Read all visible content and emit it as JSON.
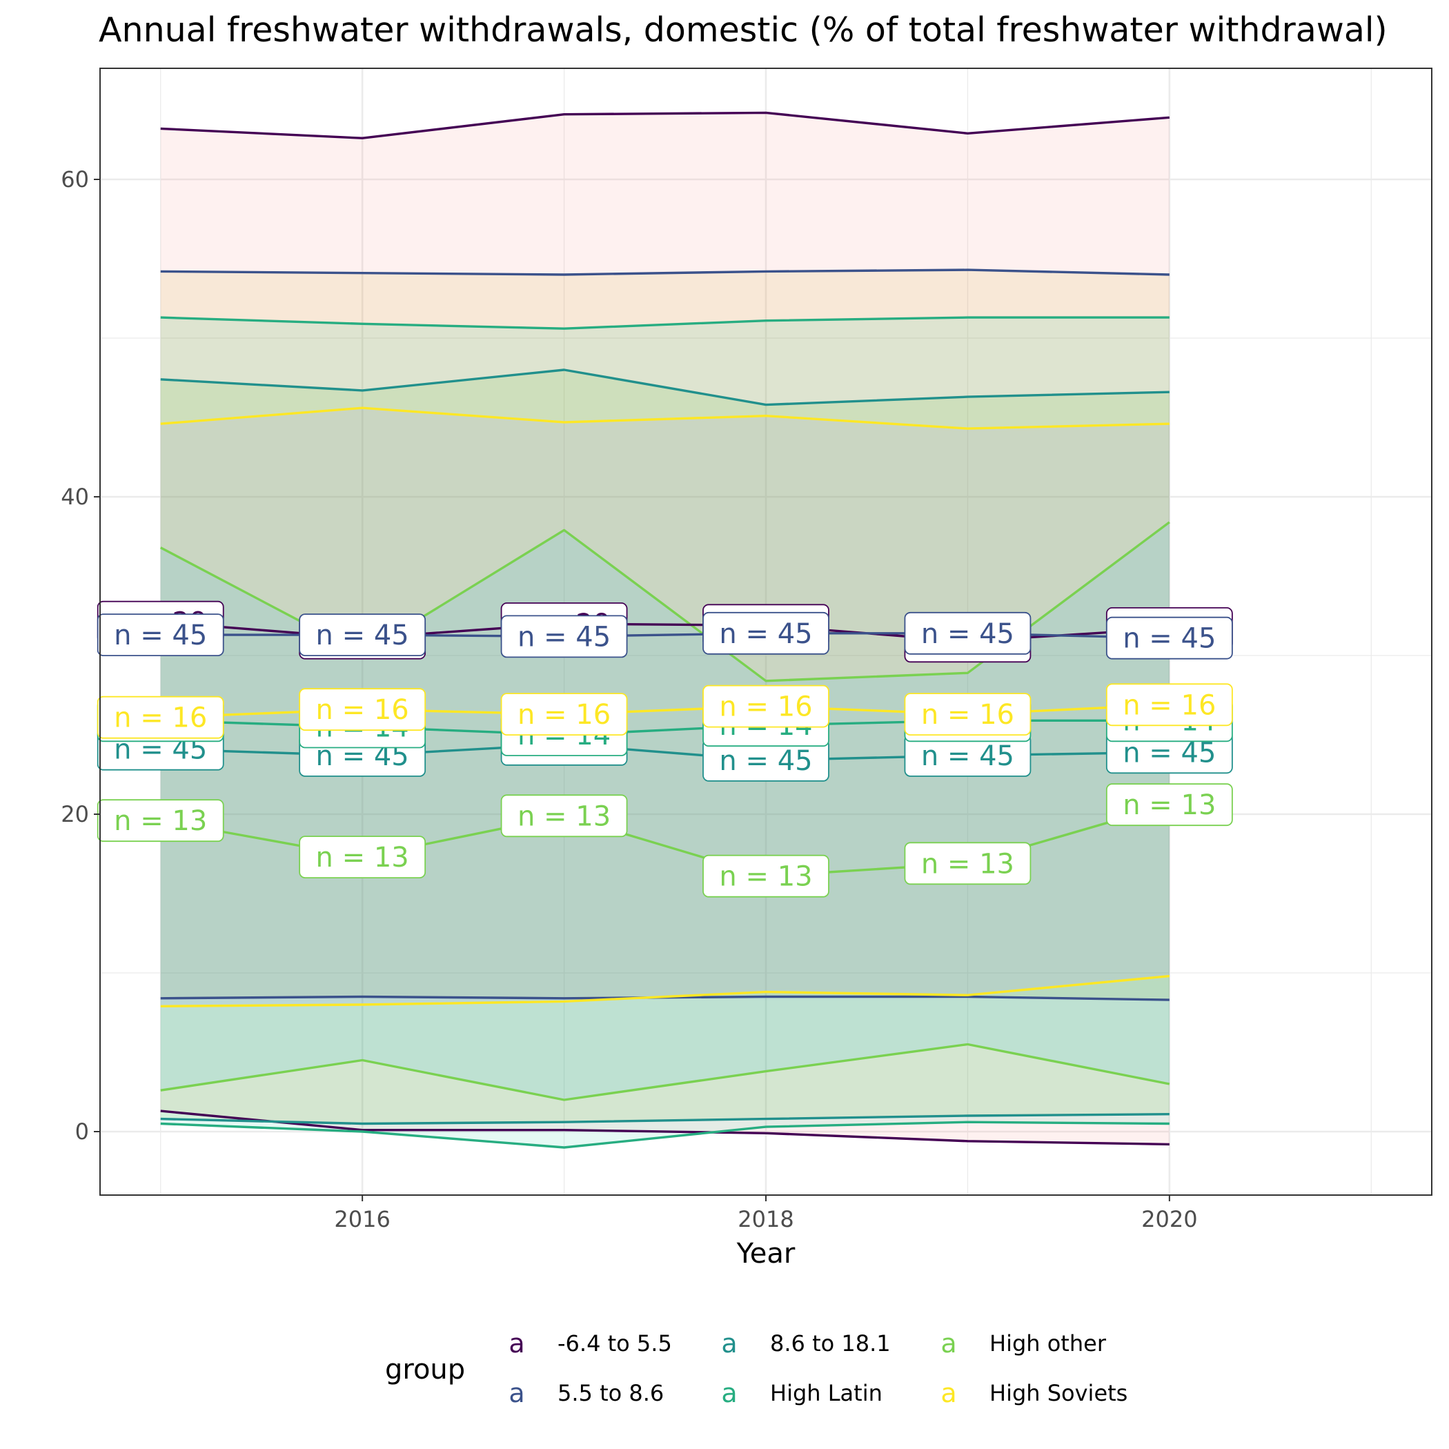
{
  "chart_data": {
    "type": "line",
    "title": "Annual freshwater withdrawals, domestic (% of total freshwater withdrawal)",
    "xlabel": "Year",
    "ylabel": "",
    "xlim": [
      2014.7,
      2021.3
    ],
    "ylim": [
      -4,
      67
    ],
    "x_ticks": [
      2016,
      2018,
      2020
    ],
    "y_ticks": [
      0,
      20,
      40,
      60
    ],
    "grid": true,
    "legend": {
      "title": "group",
      "position": "bottom",
      "key_glyph": "a"
    },
    "x": [
      2015,
      2016,
      2017,
      2018,
      2019,
      2020
    ],
    "series": [
      {
        "name": "-6.4 to 5.5",
        "color": "#440154",
        "fill": "#F8766D",
        "mean": [
          32.1,
          31.1,
          32.0,
          31.9,
          30.9,
          31.7
        ],
        "upper": [
          63.2,
          62.6,
          64.1,
          64.2,
          62.9,
          63.9
        ],
        "lower": [
          1.3,
          0.1,
          0.1,
          -0.1,
          -0.6,
          -0.8
        ],
        "n_labels": [
          "n = 29",
          "n = 29",
          "n = 29",
          "n = 29",
          "n = 29",
          "n = 29"
        ]
      },
      {
        "name": "5.5 to 8.6",
        "color": "#3B528B",
        "fill": "#C49A00",
        "mean": [
          31.3,
          31.3,
          31.2,
          31.4,
          31.4,
          31.1
        ],
        "upper": [
          54.2,
          54.1,
          54.0,
          54.2,
          54.3,
          54.0
        ],
        "lower": [
          8.4,
          8.5,
          8.4,
          8.5,
          8.5,
          8.3
        ],
        "n_labels": [
          "n = 45",
          "n = 45",
          "n = 45",
          "n = 45",
          "n = 45",
          "n = 45"
        ]
      },
      {
        "name": "8.6 to 18.1",
        "color": "#21908C",
        "fill": "#53B400",
        "mean": [
          24.1,
          23.7,
          24.4,
          23.4,
          23.7,
          23.9
        ],
        "upper": [
          47.4,
          46.7,
          48.0,
          45.8,
          46.3,
          46.6
        ],
        "lower": [
          0.8,
          0.5,
          0.6,
          0.8,
          1.0,
          1.1
        ],
        "n_labels": [
          "n = 45",
          "n = 45",
          "n = 45",
          "n = 45",
          "n = 45",
          "n = 45"
        ]
      },
      {
        "name": "High Latin",
        "color": "#27AD81",
        "fill": "#00C094",
        "mean": [
          25.9,
          25.5,
          25.0,
          25.6,
          25.9,
          25.9
        ],
        "upper": [
          51.3,
          50.9,
          50.6,
          51.1,
          51.3,
          51.3
        ],
        "lower": [
          0.5,
          0.0,
          -1.0,
          0.3,
          0.6,
          0.5
        ],
        "n_labels": [
          "n = 14",
          "n = 14",
          "n = 14",
          "n = 14",
          "n = 14",
          "n = 14"
        ]
      },
      {
        "name": "High other",
        "color": "#7AD151",
        "fill": "#00B6EB",
        "mean": [
          19.6,
          17.3,
          19.9,
          16.1,
          16.9,
          20.6
        ],
        "upper": [
          36.8,
          30.1,
          37.9,
          28.4,
          28.9,
          38.4
        ],
        "lower": [
          2.6,
          4.5,
          2.0,
          3.8,
          5.5,
          3.0
        ],
        "n_labels": [
          "n = 13",
          "n = 13",
          "n = 13",
          "n = 13",
          "n = 13",
          "n = 13"
        ]
      },
      {
        "name": "High Soviets",
        "color": "#FDE725",
        "fill": "#A58AFF",
        "mean": [
          26.1,
          26.6,
          26.3,
          26.8,
          26.3,
          26.9
        ],
        "upper": [
          44.6,
          45.6,
          44.7,
          45.1,
          44.3,
          44.6
        ],
        "lower": [
          7.9,
          8.0,
          8.2,
          8.8,
          8.6,
          9.8
        ],
        "n_labels": [
          "n = 16",
          "n = 16",
          "n = 16",
          "n = 16",
          "n = 16",
          "n = 16"
        ]
      }
    ]
  }
}
